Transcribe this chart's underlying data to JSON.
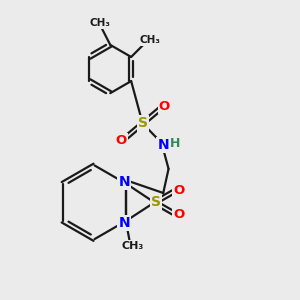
{
  "bg_color": "#ebebeb",
  "bond_color": "#1a1a1a",
  "N_color": "#0000ff",
  "S_color": "#999900",
  "O_color": "#ff0000",
  "H_color": "#2e8b57",
  "lw": 1.6,
  "figsize": [
    3.0,
    3.0
  ],
  "dpi": 100,
  "xlim": [
    0,
    10
  ],
  "ylim": [
    0,
    10
  ]
}
